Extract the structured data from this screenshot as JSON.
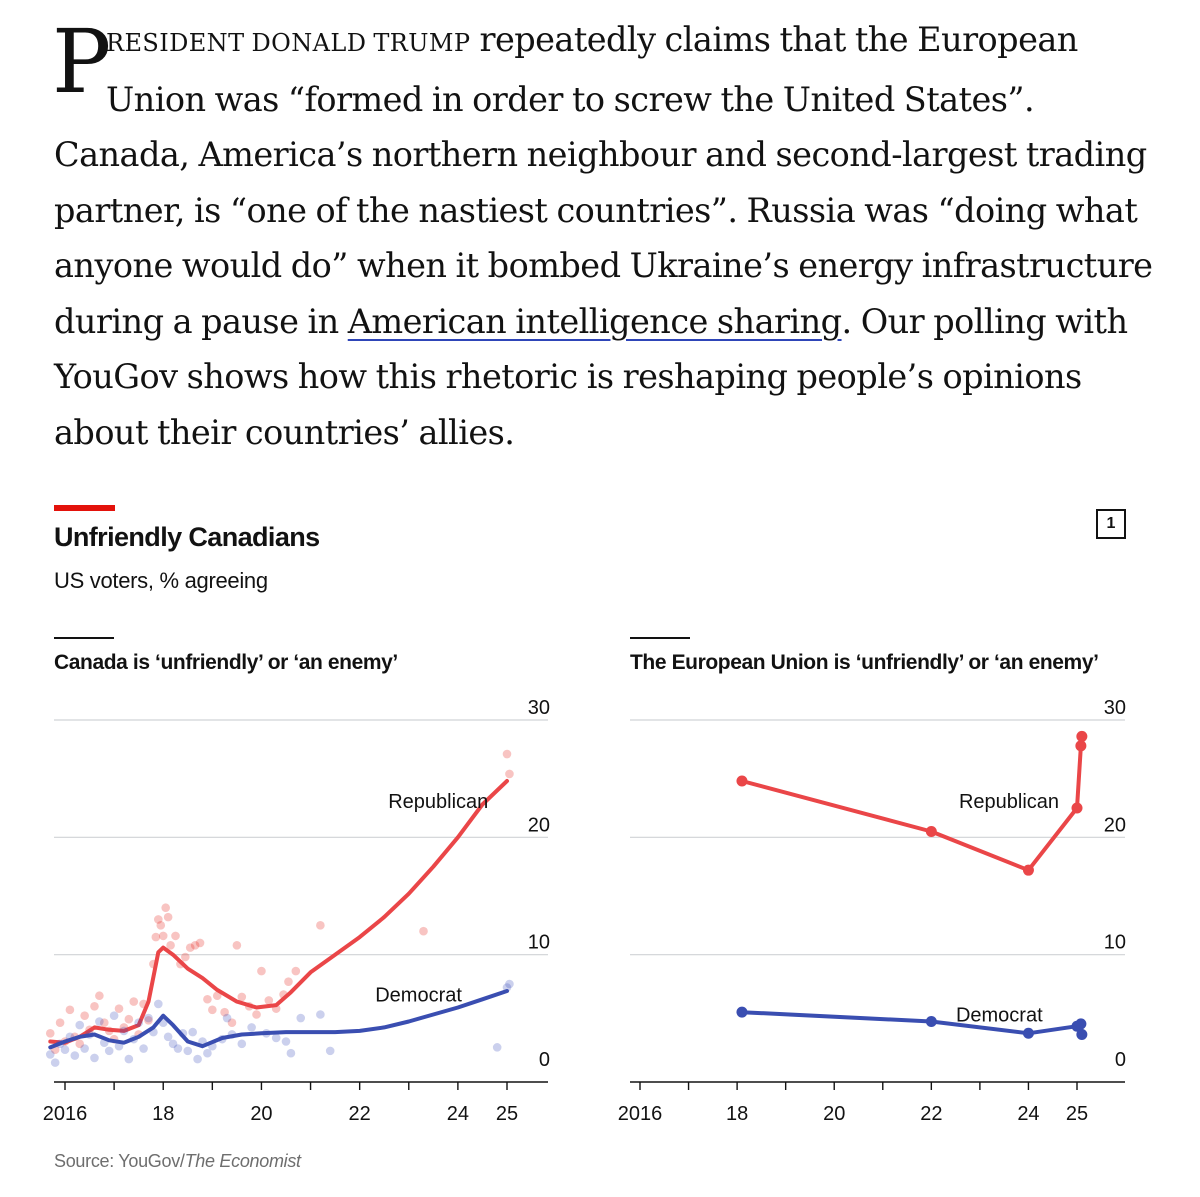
{
  "article": {
    "drop_cap": "P",
    "lead_smallcaps": "RESIDENT DONALD TRUMP",
    "line1_rest": " repeatedly claims that the European",
    "line2": "Union was “formed in order to screw the United States”.",
    "line3": "Canada, America’s northern neighbour and second-largest trading",
    "line4": "partner, is “one of the nastiest countries”. Russia was “doing what",
    "line5": "anyone would do” when it bombed Ukraine’s energy infrastructure",
    "line6_pre": "during a pause in ",
    "link_text": "American intelligence sharing",
    "line6_post": ". Our polling with",
    "line7": "YouGov shows how this rhetoric is reshaping people’s opinions",
    "line8": "about their countries’ allies."
  },
  "chart": {
    "title": "Unfriendly Canadians",
    "subtitle": "US voters, % agreeing",
    "number": "1",
    "source_prefix": "Source: YouGov/",
    "source_italic": "The Economist"
  },
  "colors": {
    "republican": "#e3120b",
    "democrat": "#2e45b8",
    "republican_line": "#ea4648",
    "democrat_line": "#3a4eb1",
    "brand_red": "#e3120b"
  },
  "chart_data": [
    {
      "type": "line",
      "title": "Canada is ‘unfriendly’ or ‘an enemy’",
      "xlim": [
        2015.7,
        2025.4
      ],
      "ylim": [
        0,
        30
      ],
      "yticks": [
        0,
        10,
        20,
        30
      ],
      "xtick_labels": [
        {
          "value": 2016,
          "label": "2016"
        },
        {
          "value": 2018,
          "label": "18"
        },
        {
          "value": 2020,
          "label": "20"
        },
        {
          "value": 2022,
          "label": "22"
        },
        {
          "value": 2024,
          "label": "24"
        },
        {
          "value": 2025,
          "label": "25"
        }
      ],
      "series": [
        {
          "name": "Republican",
          "label_at": [
            2023.6,
            23.0
          ],
          "trend_x": [
            2015.7,
            2016.0,
            2016.3,
            2016.6,
            2016.9,
            2017.2,
            2017.5,
            2017.7,
            2017.9,
            2018.0,
            2018.2,
            2018.5,
            2018.8,
            2019.1,
            2019.5,
            2019.9,
            2020.3,
            2020.6,
            2021.0,
            2021.5,
            2022.0,
            2022.5,
            2023.0,
            2023.5,
            2024.0,
            2024.5,
            2025.0
          ],
          "trend_y": [
            2.6,
            2.5,
            3.0,
            3.8,
            3.6,
            3.5,
            4.0,
            6.0,
            10.2,
            10.6,
            10.0,
            8.8,
            8.0,
            7.0,
            6.0,
            5.5,
            5.7,
            6.8,
            8.5,
            10.0,
            11.5,
            13.2,
            15.2,
            17.5,
            20.0,
            22.8,
            24.8
          ],
          "points": [
            [
              2015.7,
              3.3
            ],
            [
              2015.8,
              1.9
            ],
            [
              2015.9,
              4.2
            ],
            [
              2016.0,
              2.6
            ],
            [
              2016.1,
              5.3
            ],
            [
              2016.2,
              3.0
            ],
            [
              2016.3,
              2.4
            ],
            [
              2016.4,
              4.8
            ],
            [
              2016.5,
              3.6
            ],
            [
              2016.6,
              5.6
            ],
            [
              2016.7,
              6.5
            ],
            [
              2016.8,
              4.2
            ],
            [
              2016.9,
              3.5
            ],
            [
              2017.0,
              2.8
            ],
            [
              2017.1,
              5.4
            ],
            [
              2017.2,
              3.8
            ],
            [
              2017.3,
              4.5
            ],
            [
              2017.4,
              6.0
            ],
            [
              2017.5,
              3.2
            ],
            [
              2017.6,
              5.8
            ],
            [
              2017.7,
              4.4
            ],
            [
              2017.8,
              9.2
            ],
            [
              2017.85,
              11.5
            ],
            [
              2017.9,
              13.0
            ],
            [
              2017.95,
              12.5
            ],
            [
              2018.0,
              11.6
            ],
            [
              2018.05,
              14.0
            ],
            [
              2018.1,
              13.2
            ],
            [
              2018.15,
              10.8
            ],
            [
              2018.25,
              11.6
            ],
            [
              2018.35,
              9.2
            ],
            [
              2018.45,
              9.8
            ],
            [
              2018.55,
              10.6
            ],
            [
              2018.65,
              10.8
            ],
            [
              2018.75,
              11.0
            ],
            [
              2018.9,
              6.2
            ],
            [
              2019.0,
              5.3
            ],
            [
              2019.1,
              6.5
            ],
            [
              2019.25,
              5.1
            ],
            [
              2019.4,
              4.2
            ],
            [
              2019.5,
              10.8
            ],
            [
              2019.6,
              6.4
            ],
            [
              2019.75,
              5.6
            ],
            [
              2019.9,
              4.9
            ],
            [
              2020.0,
              8.6
            ],
            [
              2020.15,
              6.1
            ],
            [
              2020.3,
              5.4
            ],
            [
              2020.45,
              6.6
            ],
            [
              2020.55,
              7.7
            ],
            [
              2020.7,
              8.6
            ],
            [
              2021.2,
              12.5
            ],
            [
              2023.3,
              12.0
            ],
            [
              2025.0,
              27.1
            ],
            [
              2025.05,
              25.4
            ]
          ]
        },
        {
          "name": "Democrat",
          "label_at": [
            2023.2,
            6.5
          ],
          "trend_x": [
            2015.7,
            2016.0,
            2016.3,
            2016.6,
            2016.9,
            2017.2,
            2017.5,
            2017.8,
            2018.0,
            2018.2,
            2018.5,
            2018.8,
            2019.2,
            2019.6,
            2020.0,
            2020.5,
            2021.0,
            2021.5,
            2022.0,
            2022.5,
            2023.0,
            2023.5,
            2024.0,
            2024.5,
            2025.0
          ],
          "trend_y": [
            2.1,
            2.6,
            3.0,
            3.2,
            2.7,
            2.5,
            3.0,
            3.8,
            4.8,
            4.0,
            2.6,
            2.2,
            2.9,
            3.2,
            3.3,
            3.4,
            3.4,
            3.4,
            3.5,
            3.8,
            4.3,
            4.9,
            5.5,
            6.2,
            6.9
          ],
          "points": [
            [
              2015.7,
              1.5
            ],
            [
              2015.8,
              0.8
            ],
            [
              2015.9,
              2.4
            ],
            [
              2016.0,
              1.9
            ],
            [
              2016.1,
              3.0
            ],
            [
              2016.2,
              1.4
            ],
            [
              2016.3,
              4.0
            ],
            [
              2016.4,
              2.0
            ],
            [
              2016.5,
              3.2
            ],
            [
              2016.6,
              1.2
            ],
            [
              2016.7,
              4.3
            ],
            [
              2016.8,
              2.5
            ],
            [
              2016.9,
              1.8
            ],
            [
              2017.0,
              4.8
            ],
            [
              2017.1,
              2.2
            ],
            [
              2017.2,
              3.5
            ],
            [
              2017.3,
              1.1
            ],
            [
              2017.4,
              2.8
            ],
            [
              2017.5,
              4.2
            ],
            [
              2017.6,
              2.0
            ],
            [
              2017.7,
              4.6
            ],
            [
              2017.8,
              3.4
            ],
            [
              2017.9,
              5.8
            ],
            [
              2018.0,
              4.2
            ],
            [
              2018.1,
              3.0
            ],
            [
              2018.2,
              2.4
            ],
            [
              2018.3,
              2.0
            ],
            [
              2018.4,
              3.3
            ],
            [
              2018.5,
              1.8
            ],
            [
              2018.6,
              3.4
            ],
            [
              2018.7,
              1.1
            ],
            [
              2018.8,
              2.6
            ],
            [
              2018.9,
              1.6
            ],
            [
              2019.0,
              2.2
            ],
            [
              2019.2,
              2.8
            ],
            [
              2019.3,
              4.6
            ],
            [
              2019.4,
              3.2
            ],
            [
              2019.6,
              2.4
            ],
            [
              2019.8,
              3.8
            ],
            [
              2020.1,
              3.3
            ],
            [
              2020.3,
              2.9
            ],
            [
              2020.5,
              2.6
            ],
            [
              2020.6,
              1.6
            ],
            [
              2020.8,
              4.6
            ],
            [
              2021.2,
              4.9
            ],
            [
              2021.4,
              1.8
            ],
            [
              2024.8,
              2.1
            ],
            [
              2025.0,
              7.2
            ],
            [
              2025.05,
              7.5
            ]
          ]
        }
      ]
    },
    {
      "type": "line",
      "title": "The European Union is ‘unfriendly’ or ‘an enemy’",
      "xlim": [
        2015.7,
        2025.4
      ],
      "ylim": [
        0,
        30
      ],
      "yticks": [
        0,
        10,
        20,
        30
      ],
      "xtick_labels": [
        {
          "value": 2016,
          "label": "2016"
        },
        {
          "value": 2018,
          "label": "18"
        },
        {
          "value": 2020,
          "label": "20"
        },
        {
          "value": 2022,
          "label": "22"
        },
        {
          "value": 2024,
          "label": "24"
        },
        {
          "value": 2025,
          "label": "25"
        }
      ],
      "series": [
        {
          "name": "Republican",
          "label_at": [
            2023.6,
            23.0
          ],
          "x": [
            2018.1,
            2022.0,
            2024.0,
            2025.0,
            2025.08,
            2025.1
          ],
          "y": [
            24.8,
            20.5,
            17.2,
            22.5,
            27.8,
            28.6
          ]
        },
        {
          "name": "Democrat",
          "label_at": [
            2023.4,
            4.8
          ],
          "x": [
            2018.1,
            2022.0,
            2024.0,
            2025.0,
            2025.08,
            2025.1
          ],
          "y": [
            5.1,
            4.3,
            3.3,
            3.9,
            4.1,
            3.2
          ]
        }
      ]
    }
  ]
}
